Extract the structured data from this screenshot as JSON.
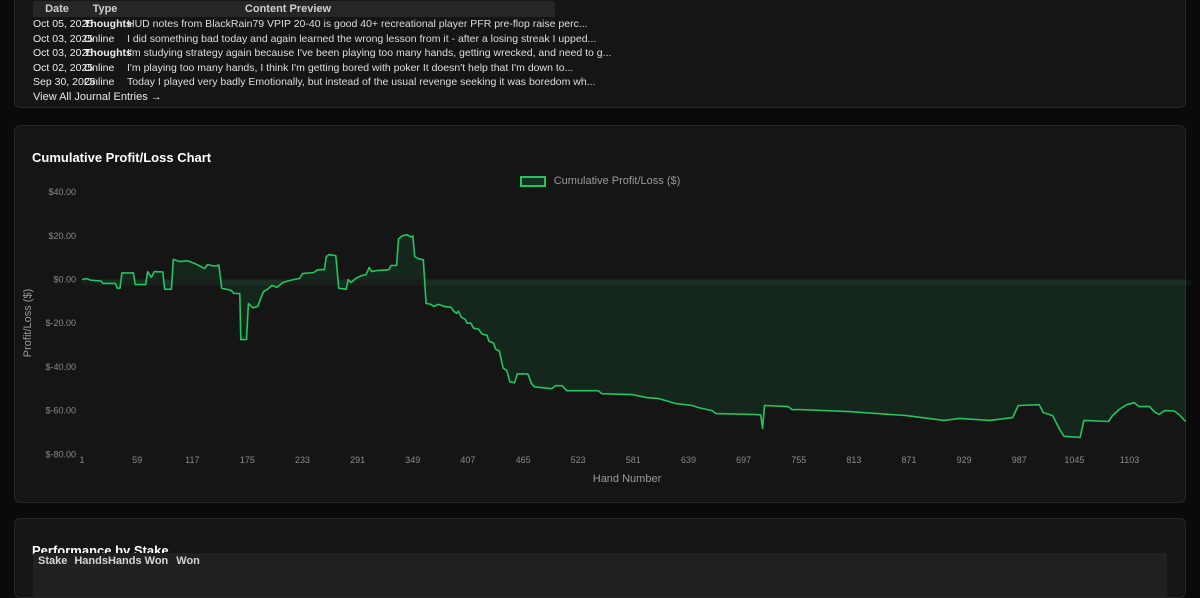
{
  "journal": {
    "columns": [
      "Date",
      "Type",
      "Content Preview"
    ],
    "rows": [
      {
        "date": "Oct 05, 2025",
        "type": "Thoughts",
        "preview": "HUD notes from BlackRain79 VPIP 20-40 is good 40+ recreational player PFR pre-flop raise perc..."
      },
      {
        "date": "Oct 03, 2025",
        "type": "Online",
        "preview": "I did something bad today and again learned the wrong lesson from it - after a losing streak I upped..."
      },
      {
        "date": "Oct 03, 2025",
        "type": "Thoughts",
        "preview": "I'm studying strategy again because I've been playing too many hands, getting wrecked, and need to g..."
      },
      {
        "date": "Oct 02, 2025",
        "type": "Online",
        "preview": "I'm playing too many hands, I think I'm getting bored with poker It doesn't help that I'm down to..."
      },
      {
        "date": "Sep 30, 2025",
        "type": "Online",
        "preview": "Today I played very badly Emotionally, but instead of the usual revenge seeking it was boredom wh..."
      }
    ],
    "view_all": "View All Journal Entries →"
  },
  "chart": {
    "title": "Cumulative Profit/Loss Chart"
  },
  "chart_data": {
    "type": "line",
    "title": "Cumulative Profit/Loss Chart",
    "xlabel": "Hand Number",
    "ylabel": "Profit/Loss ($)",
    "legend": "Cumulative Profit/Loss ($)",
    "legend_position": "top-center",
    "grid": false,
    "xlim": [
      1,
      1168
    ],
    "ylim": [
      -80,
      40
    ],
    "x_ticks": [
      1,
      59,
      117,
      175,
      233,
      291,
      349,
      407,
      465,
      523,
      581,
      639,
      697,
      755,
      813,
      871,
      929,
      987,
      1045,
      1103
    ],
    "y_ticks": [
      {
        "value": 40,
        "label": "$40.00"
      },
      {
        "value": 20,
        "label": "$20.00"
      },
      {
        "value": 0,
        "label": "$0.00"
      },
      {
        "value": -20,
        "label": "$-20.00"
      },
      {
        "value": -40,
        "label": "$-40.00"
      },
      {
        "value": -60,
        "label": "$-60.00"
      },
      {
        "value": -80,
        "label": "$-80.00"
      }
    ],
    "line_color": "#22c55e",
    "fill_color": "rgba(34,197,94,0.10)",
    "series": [
      {
        "name": "Cumulative Profit/Loss ($)",
        "points": [
          [
            1,
            0
          ],
          [
            6,
            0.4
          ],
          [
            10,
            -0.3
          ],
          [
            15,
            -0.5
          ],
          [
            21,
            -0.7
          ],
          [
            23,
            -1.8
          ],
          [
            36,
            -1.8
          ],
          [
            38,
            -4
          ],
          [
            41,
            -4
          ],
          [
            43,
            3
          ],
          [
            55,
            3
          ],
          [
            57,
            -2.3
          ],
          [
            68,
            -2.3
          ],
          [
            70,
            3.6
          ],
          [
            74,
            1
          ],
          [
            77,
            3.6
          ],
          [
            86,
            3.5
          ],
          [
            88,
            -4.5
          ],
          [
            95,
            -4.5
          ],
          [
            97,
            9.2
          ],
          [
            104,
            8.2
          ],
          [
            112,
            8.6
          ],
          [
            120,
            7.3
          ],
          [
            130,
            5
          ],
          [
            133,
            6.8
          ],
          [
            140,
            6.2
          ],
          [
            145,
            6.6
          ],
          [
            148,
            -4
          ],
          [
            158,
            -5
          ],
          [
            161,
            -6.4
          ],
          [
            167,
            -6.4
          ],
          [
            168,
            -27.5
          ],
          [
            174,
            -27.5
          ],
          [
            176,
            -11
          ],
          [
            181,
            -13
          ],
          [
            186,
            -12.3
          ],
          [
            189,
            -8.6
          ],
          [
            192,
            -5.5
          ],
          [
            196,
            -4.5
          ],
          [
            201,
            -2.7
          ],
          [
            206,
            -3.6
          ],
          [
            212,
            -1.4
          ],
          [
            219,
            -0.5
          ],
          [
            224,
            0
          ],
          [
            230,
            0.5
          ],
          [
            233,
            2.7
          ],
          [
            245,
            3.2
          ],
          [
            249,
            4.5
          ],
          [
            256,
            4.5
          ],
          [
            258,
            10.5
          ],
          [
            261,
            11.4
          ],
          [
            268,
            10.9
          ],
          [
            271,
            -4
          ],
          [
            279,
            -4.5
          ],
          [
            281,
            0
          ],
          [
            284,
            -1.4
          ],
          [
            289,
            0.5
          ],
          [
            295,
            1.8
          ],
          [
            300,
            2.3
          ],
          [
            303,
            5.5
          ],
          [
            306,
            3.6
          ],
          [
            311,
            4.1
          ],
          [
            324,
            4.5
          ],
          [
            326,
            6.4
          ],
          [
            332,
            6.4
          ],
          [
            334,
            18.6
          ],
          [
            338,
            20
          ],
          [
            343,
            20.5
          ],
          [
            347,
            19.5
          ],
          [
            349,
            20
          ],
          [
            351,
            10.5
          ],
          [
            355,
            9.5
          ],
          [
            360,
            9
          ],
          [
            363,
            -10.9
          ],
          [
            368,
            -11.4
          ],
          [
            371,
            -12.3
          ],
          [
            376,
            -11.4
          ],
          [
            382,
            -12.3
          ],
          [
            389,
            -12.7
          ],
          [
            392,
            -14.5
          ],
          [
            395,
            -15.5
          ],
          [
            397,
            -14.5
          ],
          [
            400,
            -17.3
          ],
          [
            404,
            -18.2
          ],
          [
            406,
            -20
          ],
          [
            410,
            -20
          ],
          [
            413,
            -22.3
          ],
          [
            418,
            -22.7
          ],
          [
            422,
            -25
          ],
          [
            427,
            -25.5
          ],
          [
            429,
            -28.2
          ],
          [
            434,
            -29.1
          ],
          [
            436,
            -31.8
          ],
          [
            440,
            -32.7
          ],
          [
            444,
            -40.5
          ],
          [
            448,
            -41.8
          ],
          [
            451,
            -46.8
          ],
          [
            456,
            -47.3
          ],
          [
            459,
            -43.2
          ],
          [
            470,
            -43.2
          ],
          [
            474,
            -47.7
          ],
          [
            477,
            -49.1
          ],
          [
            495,
            -50
          ],
          [
            499,
            -48.6
          ],
          [
            506,
            -48.6
          ],
          [
            511,
            -50.9
          ],
          [
            544,
            -50.9
          ],
          [
            548,
            -52.3
          ],
          [
            580,
            -52.7
          ],
          [
            596,
            -54.1
          ],
          [
            608,
            -54.5
          ],
          [
            626,
            -56.8
          ],
          [
            643,
            -57.7
          ],
          [
            649,
            -58.6
          ],
          [
            664,
            -60
          ],
          [
            668,
            -61.4
          ],
          [
            710,
            -61.8
          ],
          [
            715,
            -62
          ],
          [
            717,
            -68.2
          ],
          [
            719,
            -57.7
          ],
          [
            744,
            -58.2
          ],
          [
            748,
            -59.6
          ],
          [
            755,
            -59.5
          ],
          [
            810,
            -60.5
          ],
          [
            868,
            -62.3
          ],
          [
            908,
            -64.5
          ],
          [
            924,
            -63.6
          ],
          [
            956,
            -64.5
          ],
          [
            980,
            -63.2
          ],
          [
            986,
            -57.7
          ],
          [
            1008,
            -57.3
          ],
          [
            1012,
            -60.9
          ],
          [
            1022,
            -62.3
          ],
          [
            1030,
            -69.1
          ],
          [
            1034,
            -71.8
          ],
          [
            1051,
            -72.3
          ],
          [
            1055,
            -64.5
          ],
          [
            1081,
            -65
          ],
          [
            1085,
            -62.3
          ],
          [
            1092,
            -59.5
          ],
          [
            1100,
            -57.3
          ],
          [
            1108,
            -56.4
          ],
          [
            1113,
            -58.2
          ],
          [
            1124,
            -58.2
          ],
          [
            1129,
            -60.5
          ],
          [
            1134,
            -61.8
          ],
          [
            1140,
            -60
          ],
          [
            1150,
            -60.2
          ],
          [
            1155,
            -61.8
          ],
          [
            1162,
            -65
          ]
        ]
      }
    ]
  },
  "stake": {
    "title": "Performance by Stake",
    "columns": [
      "Stake",
      "Hands",
      "Hands Won",
      "Won"
    ]
  }
}
